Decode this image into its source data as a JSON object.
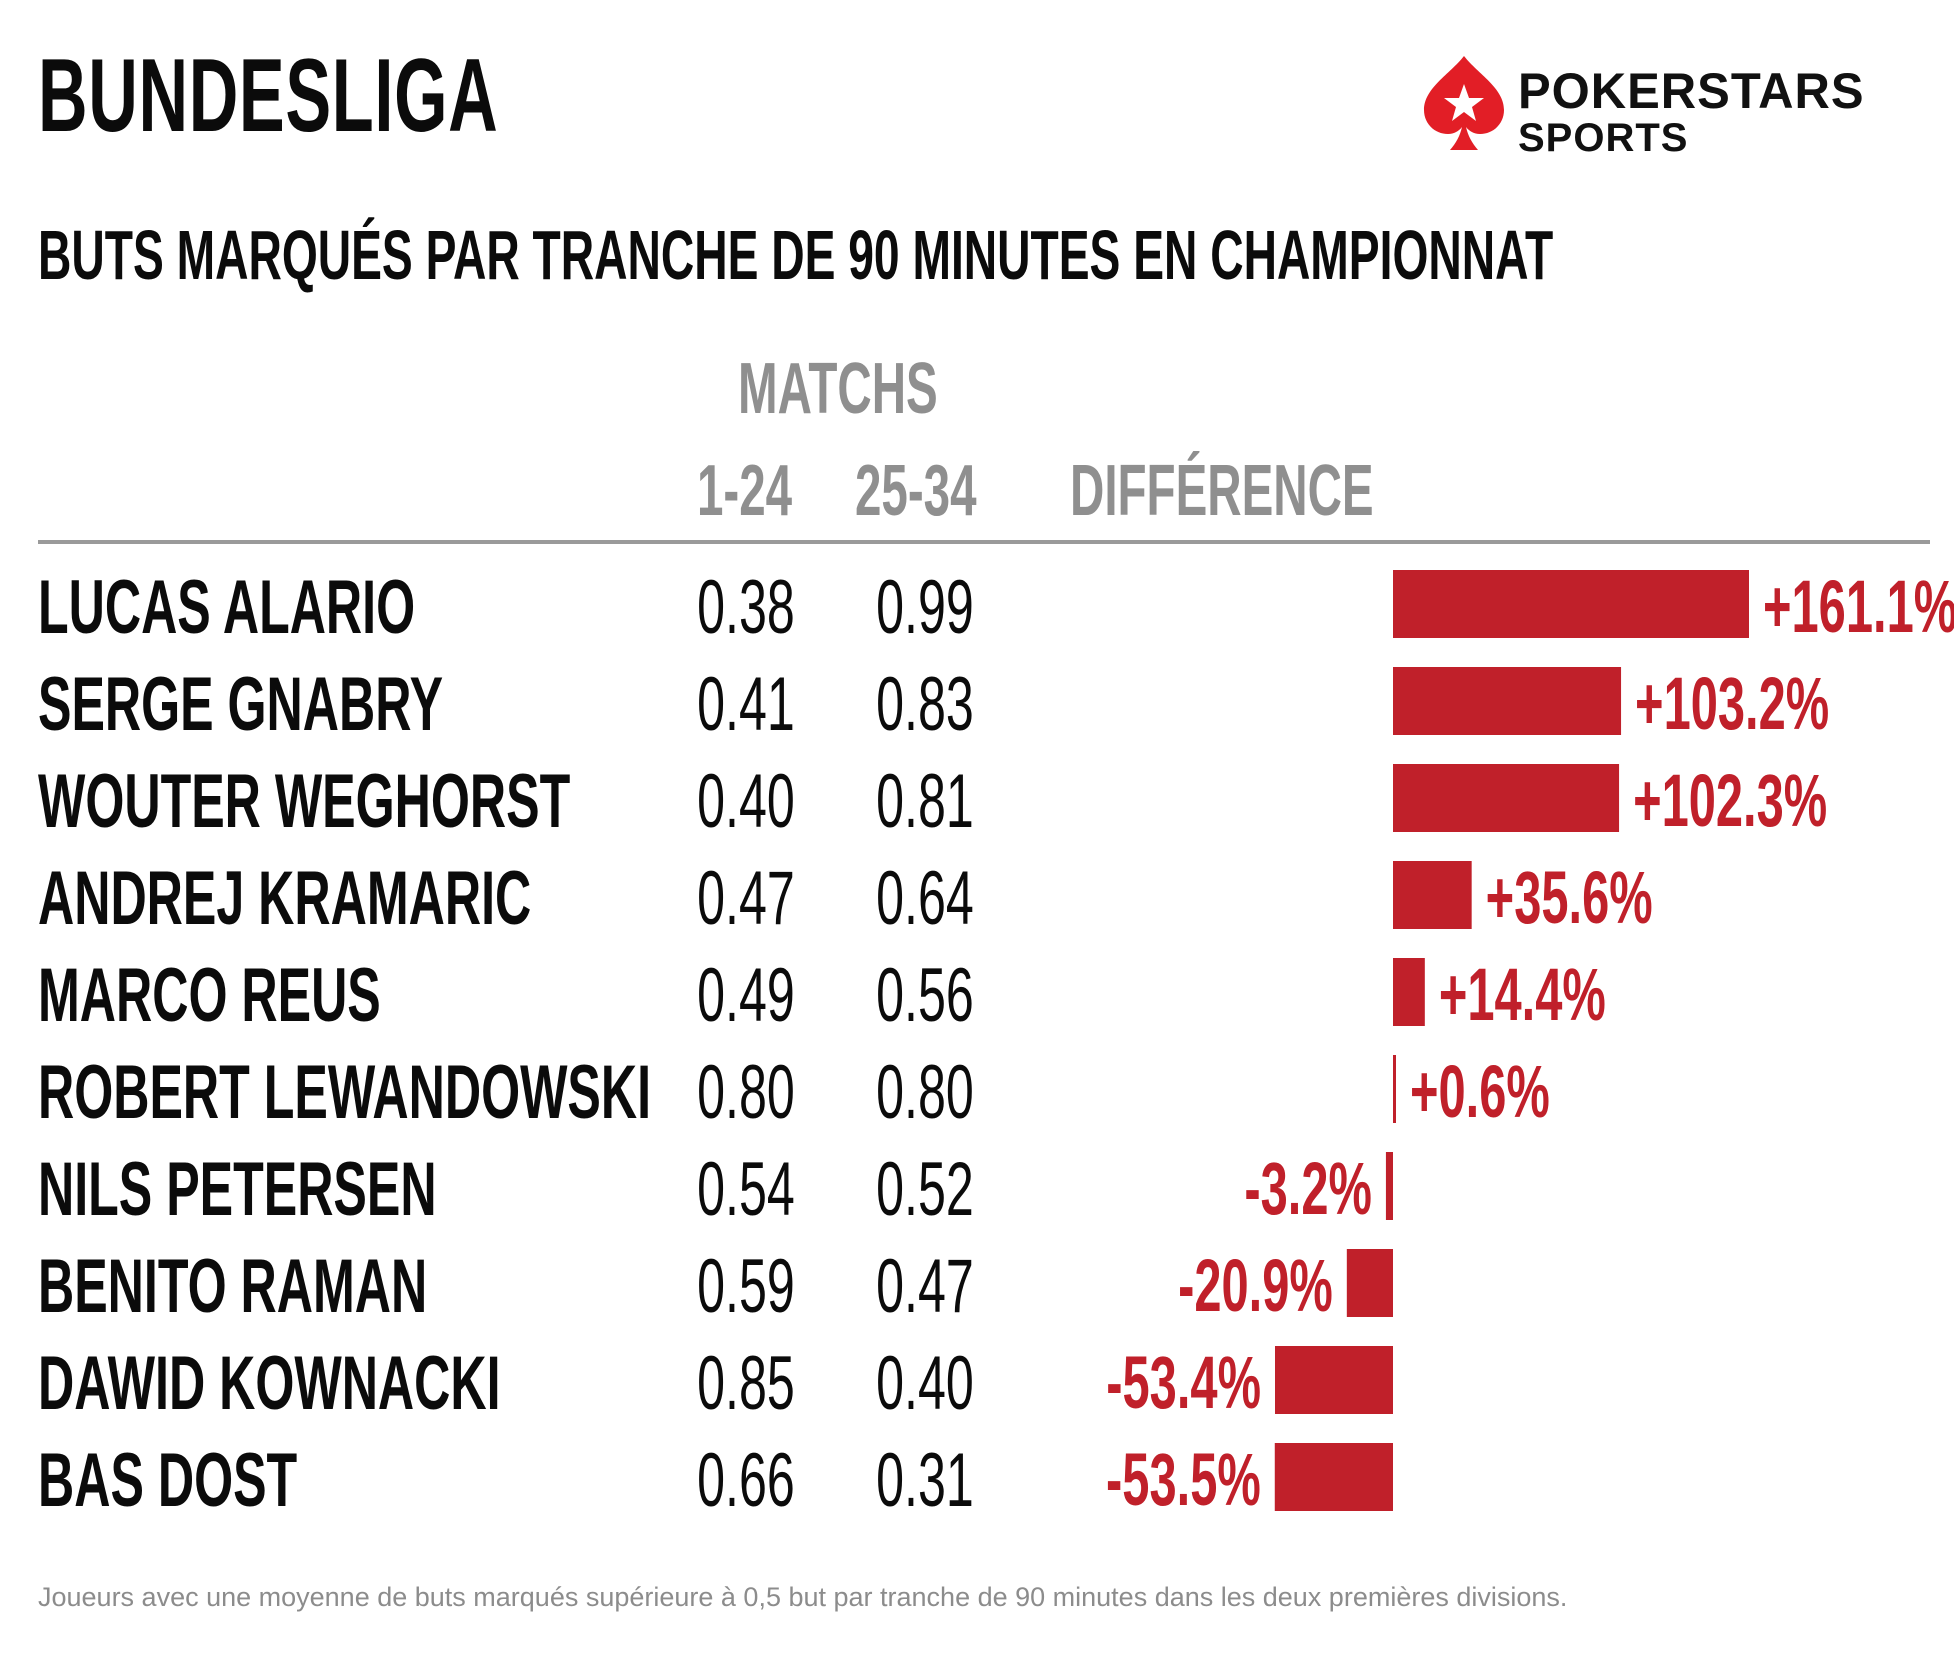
{
  "title": "BUNDESLIGA",
  "subtitle": "BUTS MARQUÉS PAR TRANCHE DE 90 MINUTES EN CHAMPIONNAT",
  "logo": {
    "line1": "POKERSTARS",
    "line2": "SPORTS",
    "icon": "spade-star-icon",
    "color": "#e21e26"
  },
  "headers": {
    "group": "MATCHS",
    "col1": "1-24",
    "col2": "25-34",
    "diff": "DIFFÉRENCE"
  },
  "footnote": "Joueurs avec une moyenne de buts marqués supérieure à 0,5 but par tranche de 90 minutes dans les deux premières divisions.",
  "colors": {
    "bar": "#c0202a",
    "text": "#0b0b0b",
    "header": "#8f8f8f"
  },
  "chart_data": {
    "type": "bar",
    "orientation": "horizontal-diverging",
    "categories": [
      "LUCAS ALARIO",
      "SERGE GNABRY",
      "WOUTER WEGHORST",
      "ANDREJ KRAMARIC",
      "MARCO REUS",
      "ROBERT LEWANDOWSKI",
      "NILS PETERSEN",
      "BENITO RAMAN",
      "DAWID KOWNACKI",
      "BAS DOST"
    ],
    "matchs_1_24": [
      "0.38",
      "0.41",
      "0.40",
      "0.47",
      "0.49",
      "0.80",
      "0.54",
      "0.59",
      "0.85",
      "0.66"
    ],
    "matchs_25_34": [
      "0.99",
      "0.83",
      "0.81",
      "0.64",
      "0.56",
      "0.80",
      "0.52",
      "0.47",
      "0.40",
      "0.31"
    ],
    "values": [
      161.1,
      103.2,
      102.3,
      35.6,
      14.4,
      0.6,
      -3.2,
      -20.9,
      -53.4,
      -53.5
    ],
    "labels": [
      "+161.1%",
      "+103.2%",
      "+102.3%",
      "+35.6%",
      "+14.4%",
      "+0.6%",
      "-3.2%",
      "-20.9%",
      "-53.4%",
      "-53.5%"
    ],
    "unit": "%"
  }
}
